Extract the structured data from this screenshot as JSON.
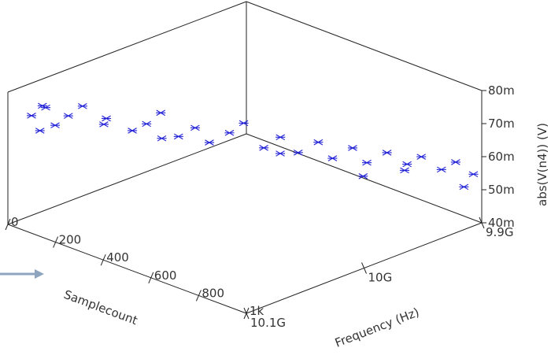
{
  "chart_data": {
    "type": "scatter",
    "projection": "3d",
    "x_axis": {
      "label": "Samplecount",
      "ticks": [
        "0",
        "200",
        "400",
        "600",
        "800",
        "1k"
      ],
      "range": [
        0,
        1000
      ]
    },
    "y_axis": {
      "label": "Frequency (Hz)",
      "ticks": [
        "9.9G",
        "10G",
        "10.1G"
      ],
      "range": [
        9.9,
        10.1
      ]
    },
    "z_axis": {
      "label": "abs(V(n4)) (V)",
      "ticks": [
        "40m",
        "50m",
        "60m",
        "70m",
        "80m"
      ],
      "range": [
        40,
        80
      ]
    },
    "marker": "asterisk",
    "marker_color": "#1f1fd6",
    "points": [
      [
        25,
        9.915,
        71.5
      ],
      [
        60,
        9.92,
        74.2
      ],
      [
        95,
        9.908,
        69.8
      ],
      [
        130,
        9.925,
        72.9
      ],
      [
        165,
        9.93,
        76.1
      ],
      [
        205,
        9.94,
        70.3
      ],
      [
        240,
        9.935,
        73.7
      ],
      [
        275,
        9.95,
        68.9
      ],
      [
        310,
        9.955,
        71.2
      ],
      [
        345,
        9.96,
        74.8
      ],
      [
        380,
        9.968,
        67.5
      ],
      [
        415,
        9.975,
        70.1
      ],
      [
        450,
        9.98,
        65.9
      ],
      [
        485,
        9.99,
        68.4
      ],
      [
        520,
        9.995,
        71.6
      ],
      [
        555,
        10.005,
        63.7
      ],
      [
        590,
        10.012,
        66.9
      ],
      [
        625,
        10.02,
        62.1
      ],
      [
        660,
        10.03,
        64.8
      ],
      [
        695,
        10.035,
        60.2
      ],
      [
        730,
        10.045,
        62.9
      ],
      [
        765,
        10.05,
        58.7
      ],
      [
        800,
        10.06,
        61.3
      ],
      [
        835,
        10.07,
        57.4
      ],
      [
        870,
        10.075,
        59.9
      ],
      [
        905,
        10.085,
        55.6
      ],
      [
        940,
        10.09,
        58.1
      ],
      [
        975,
        10.098,
        54.3
      ],
      [
        50,
        9.93,
        67.2
      ],
      [
        300,
        9.97,
        64.5
      ],
      [
        550,
        10.02,
        59.8
      ],
      [
        800,
        10.075,
        53.9
      ],
      [
        120,
        9.905,
        78.4
      ],
      [
        700,
        10.06,
        51.5
      ],
      [
        950,
        10.095,
        50.2
      ]
    ]
  }
}
